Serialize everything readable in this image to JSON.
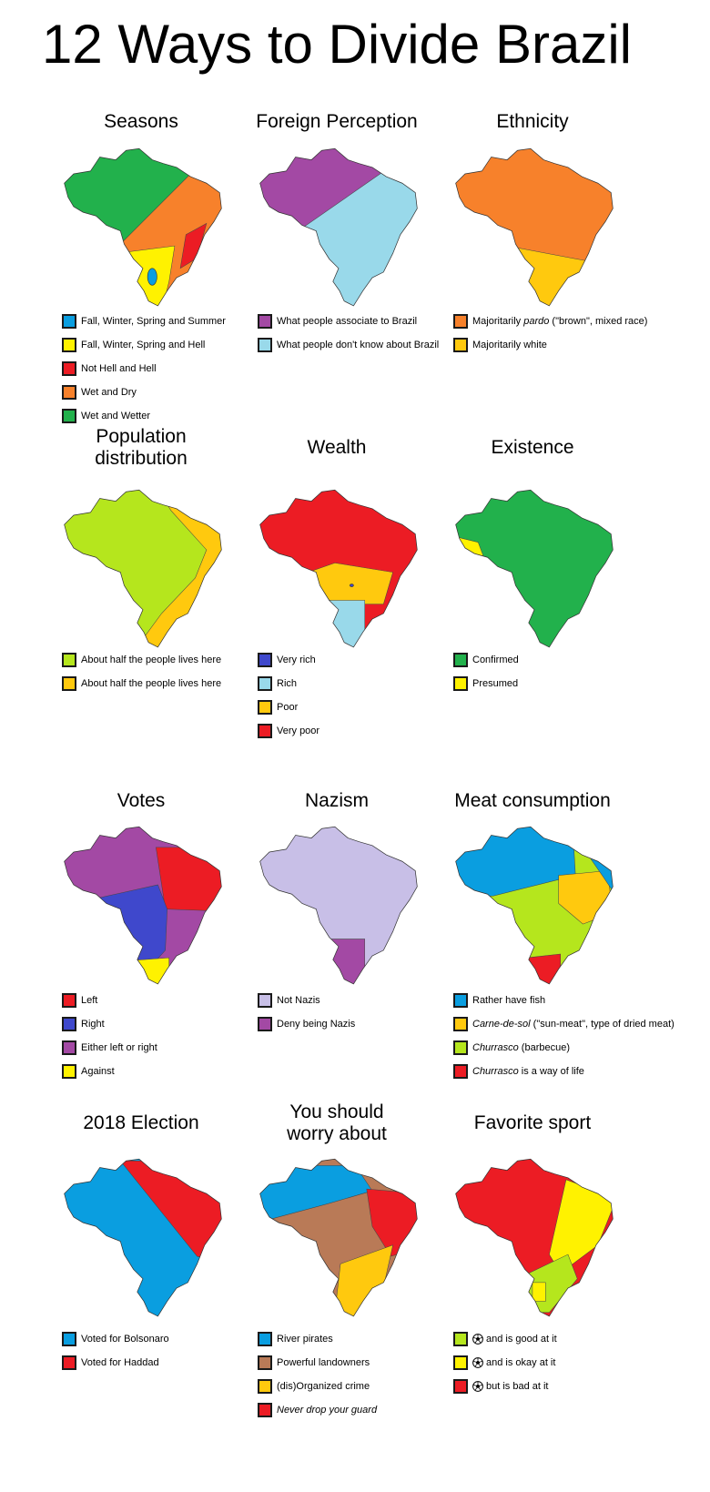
{
  "title": "12 Ways to Divide Brazil",
  "panels": [
    {
      "title": "Seasons",
      "legend": [
        {
          "color": "#0a9ee0",
          "label": "Fall, Winter, Spring and Summer"
        },
        {
          "color": "#fff200",
          "label": "Fall, Winter, Spring and Hell"
        },
        {
          "color": "#ec1c24",
          "label": "Not Hell and Hell"
        },
        {
          "color": "#f7812b",
          "label": "Wet and Dry"
        },
        {
          "color": "#22b14c",
          "label": "Wet and Wetter"
        }
      ]
    },
    {
      "title": "Foreign Perception",
      "legend": [
        {
          "color": "#a349a4",
          "label": "What people associate to Brazil"
        },
        {
          "color": "#99d9ea",
          "label": "What people don't know about Brazil"
        }
      ]
    },
    {
      "title": "Ethnicity",
      "legend": [
        {
          "color": "#f7812b",
          "pre": "Majoritarily ",
          "italic": "pardo",
          "post": " (\"brown\", mixed race)"
        },
        {
          "color": "#ffc90e",
          "label": "Majoritarily white"
        }
      ]
    },
    {
      "title": "Population\ndistribution",
      "legend": [
        {
          "color": "#b5e61d",
          "label": "About half the people lives here"
        },
        {
          "color": "#ffc90e",
          "label": "About half the people lives here"
        }
      ]
    },
    {
      "title": "Wealth",
      "legend": [
        {
          "color": "#3f48cc",
          "label": "Very rich"
        },
        {
          "color": "#99d9ea",
          "label": "Rich"
        },
        {
          "color": "#ffc90e",
          "label": "Poor"
        },
        {
          "color": "#ec1c24",
          "label": "Very poor"
        }
      ]
    },
    {
      "title": "Existence",
      "legend": [
        {
          "color": "#22b14c",
          "label": "Confirmed"
        },
        {
          "color": "#fff200",
          "label": "Presumed"
        }
      ]
    },
    {
      "title": "Votes",
      "legend": [
        {
          "color": "#ec1c24",
          "label": "Left"
        },
        {
          "color": "#3f48cc",
          "label": "Right"
        },
        {
          "color": "#a349a4",
          "label": "Either left or right"
        },
        {
          "color": "#fff200",
          "label": "Against"
        }
      ]
    },
    {
      "title": "Nazism",
      "legend": [
        {
          "color": "#c8bfe7",
          "label": "Not Nazis"
        },
        {
          "color": "#a349a4",
          "label": "Deny being Nazis"
        }
      ]
    },
    {
      "title": "Meat consumption",
      "legend": [
        {
          "color": "#0a9ee0",
          "label": "Rather have fish"
        },
        {
          "color": "#ffc90e",
          "italic": "Carne-de-sol",
          "post": " (\"sun-meat\", type of dried meat)"
        },
        {
          "color": "#b5e61d",
          "italic": "Churrasco",
          "post": " (barbecue)"
        },
        {
          "color": "#ec1c24",
          "italic": "Churrasco",
          "post": " is a way of life"
        }
      ]
    },
    {
      "title": "2018 Election",
      "legend": [
        {
          "color": "#0a9ee0",
          "label": "Voted for Bolsonaro"
        },
        {
          "color": "#ec1c24",
          "label": "Voted for Haddad"
        }
      ]
    },
    {
      "title": "You should\nworry about",
      "legend": [
        {
          "color": "#0a9ee0",
          "label": "River pirates"
        },
        {
          "color": "#b97a57",
          "label": "Powerful landowners"
        },
        {
          "color": "#ffc90e",
          "label": "(dis)Organized crime"
        },
        {
          "color": "#ec1c24",
          "italic": "Never drop your guard"
        }
      ]
    },
    {
      "title": "Favorite sport",
      "legend": [
        {
          "color": "#b5e61d",
          "icon": "soccer-ball-icon",
          "label": "and is good at it"
        },
        {
          "color": "#fff200",
          "icon": "soccer-ball-icon",
          "label": "and is okay at it"
        },
        {
          "color": "#ec1c24",
          "icon": "soccer-ball-icon",
          "label": "but is bad at it"
        }
      ]
    }
  ]
}
